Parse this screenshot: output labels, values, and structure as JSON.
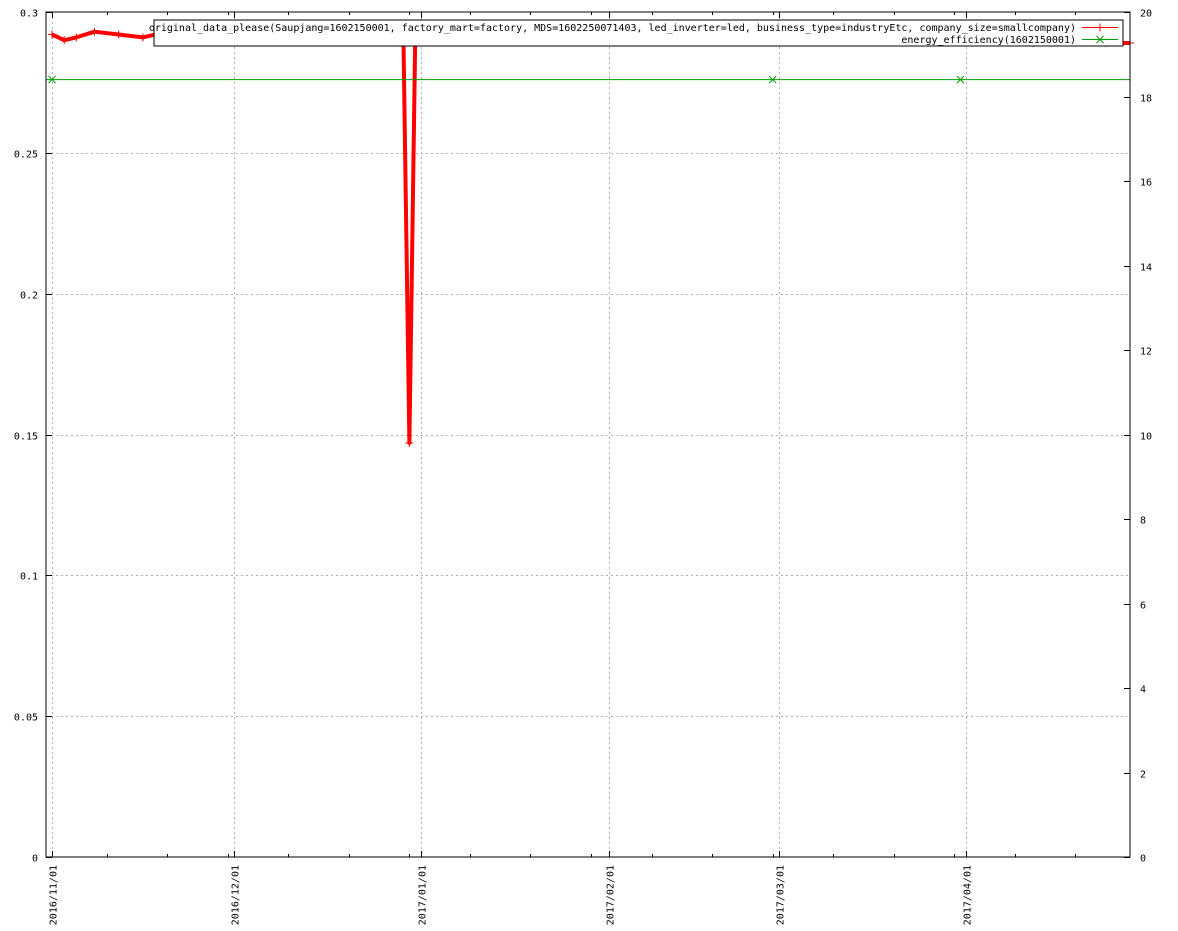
{
  "chart_data": {
    "type": "line",
    "title": "",
    "xlabel": "",
    "ylabel": "",
    "y2label": "",
    "grid": true,
    "legend_position": "top-right",
    "x_range": [
      "2016-10-31",
      "2017-04-28"
    ],
    "ylim": [
      0,
      0.3
    ],
    "y2lim": [
      0,
      20
    ],
    "x_tick_labels": [
      "2016/11/01",
      "2016/12/01",
      "2017/01/01",
      "2017/02/01",
      "2017/03/01",
      "2017/04/01"
    ],
    "y_tick_labels": [
      "0",
      "0.05",
      "0.1",
      "0.15",
      "0.2",
      "0.25",
      "0.3"
    ],
    "y2_tick_labels": [
      "0",
      "2",
      "4",
      "6",
      "8",
      "10",
      "12",
      "14",
      "16",
      "18",
      "20"
    ],
    "series": [
      {
        "name": "original_data_please(Saupjang=1602150001, factory_mart=factory, MDS=1602250071403, led_inverter=led, business_type=industryEtc, company_size=smallcompany)",
        "color": "#ff0000",
        "marker": "+",
        "axis": "y",
        "x": [
          "2016-11-01",
          "2016-11-03",
          "2016-11-05",
          "2016-11-08",
          "2016-11-12",
          "2016-11-16",
          "2016-11-20",
          "2016-11-24",
          "2016-11-28",
          "2016-12-02",
          "2016-12-06",
          "2016-12-10",
          "2016-12-14",
          "2016-12-18",
          "2016-12-22",
          "2016-12-26",
          "2016-12-29",
          "2016-12-30",
          "2016-12-31",
          "2017-01-01",
          "2017-01-02",
          "2017-01-06",
          "2017-01-10",
          "2017-01-14",
          "2017-01-18",
          "2017-01-22",
          "2017-01-26",
          "2017-01-30",
          "2017-02-03",
          "2017-02-07",
          "2017-02-11",
          "2017-02-15",
          "2017-02-19",
          "2017-02-23",
          "2017-02-27",
          "2017-03-03",
          "2017-03-07",
          "2017-03-11",
          "2017-03-15",
          "2017-03-19",
          "2017-03-23",
          "2017-03-27",
          "2017-03-31",
          "2017-04-04",
          "2017-04-08",
          "2017-04-12",
          "2017-04-16",
          "2017-04-20",
          "2017-04-24",
          "2017-04-28"
        ],
        "values": [
          0.292,
          0.29,
          0.291,
          0.293,
          0.292,
          0.291,
          0.293,
          0.294,
          0.293,
          0.292,
          0.293,
          0.292,
          0.293,
          0.292,
          0.293,
          0.293,
          0.294,
          0.147,
          0.295,
          0.296,
          0.294,
          0.293,
          0.292,
          0.293,
          0.292,
          0.293,
          0.294,
          0.293,
          0.292,
          0.292,
          0.293,
          0.292,
          0.291,
          0.292,
          0.292,
          0.291,
          0.292,
          0.291,
          0.292,
          0.291,
          0.291,
          0.29,
          0.291,
          0.29,
          0.29,
          0.289,
          0.29,
          0.29,
          0.289,
          0.289
        ]
      },
      {
        "name": "energy_efficiency(1602150001)",
        "color": "#00a000",
        "marker": "x",
        "axis": "y2",
        "x": [
          "2016-11-01",
          "2017-02-28",
          "2017-03-31"
        ],
        "values": [
          18.4,
          18.4,
          18.4
        ]
      }
    ]
  }
}
